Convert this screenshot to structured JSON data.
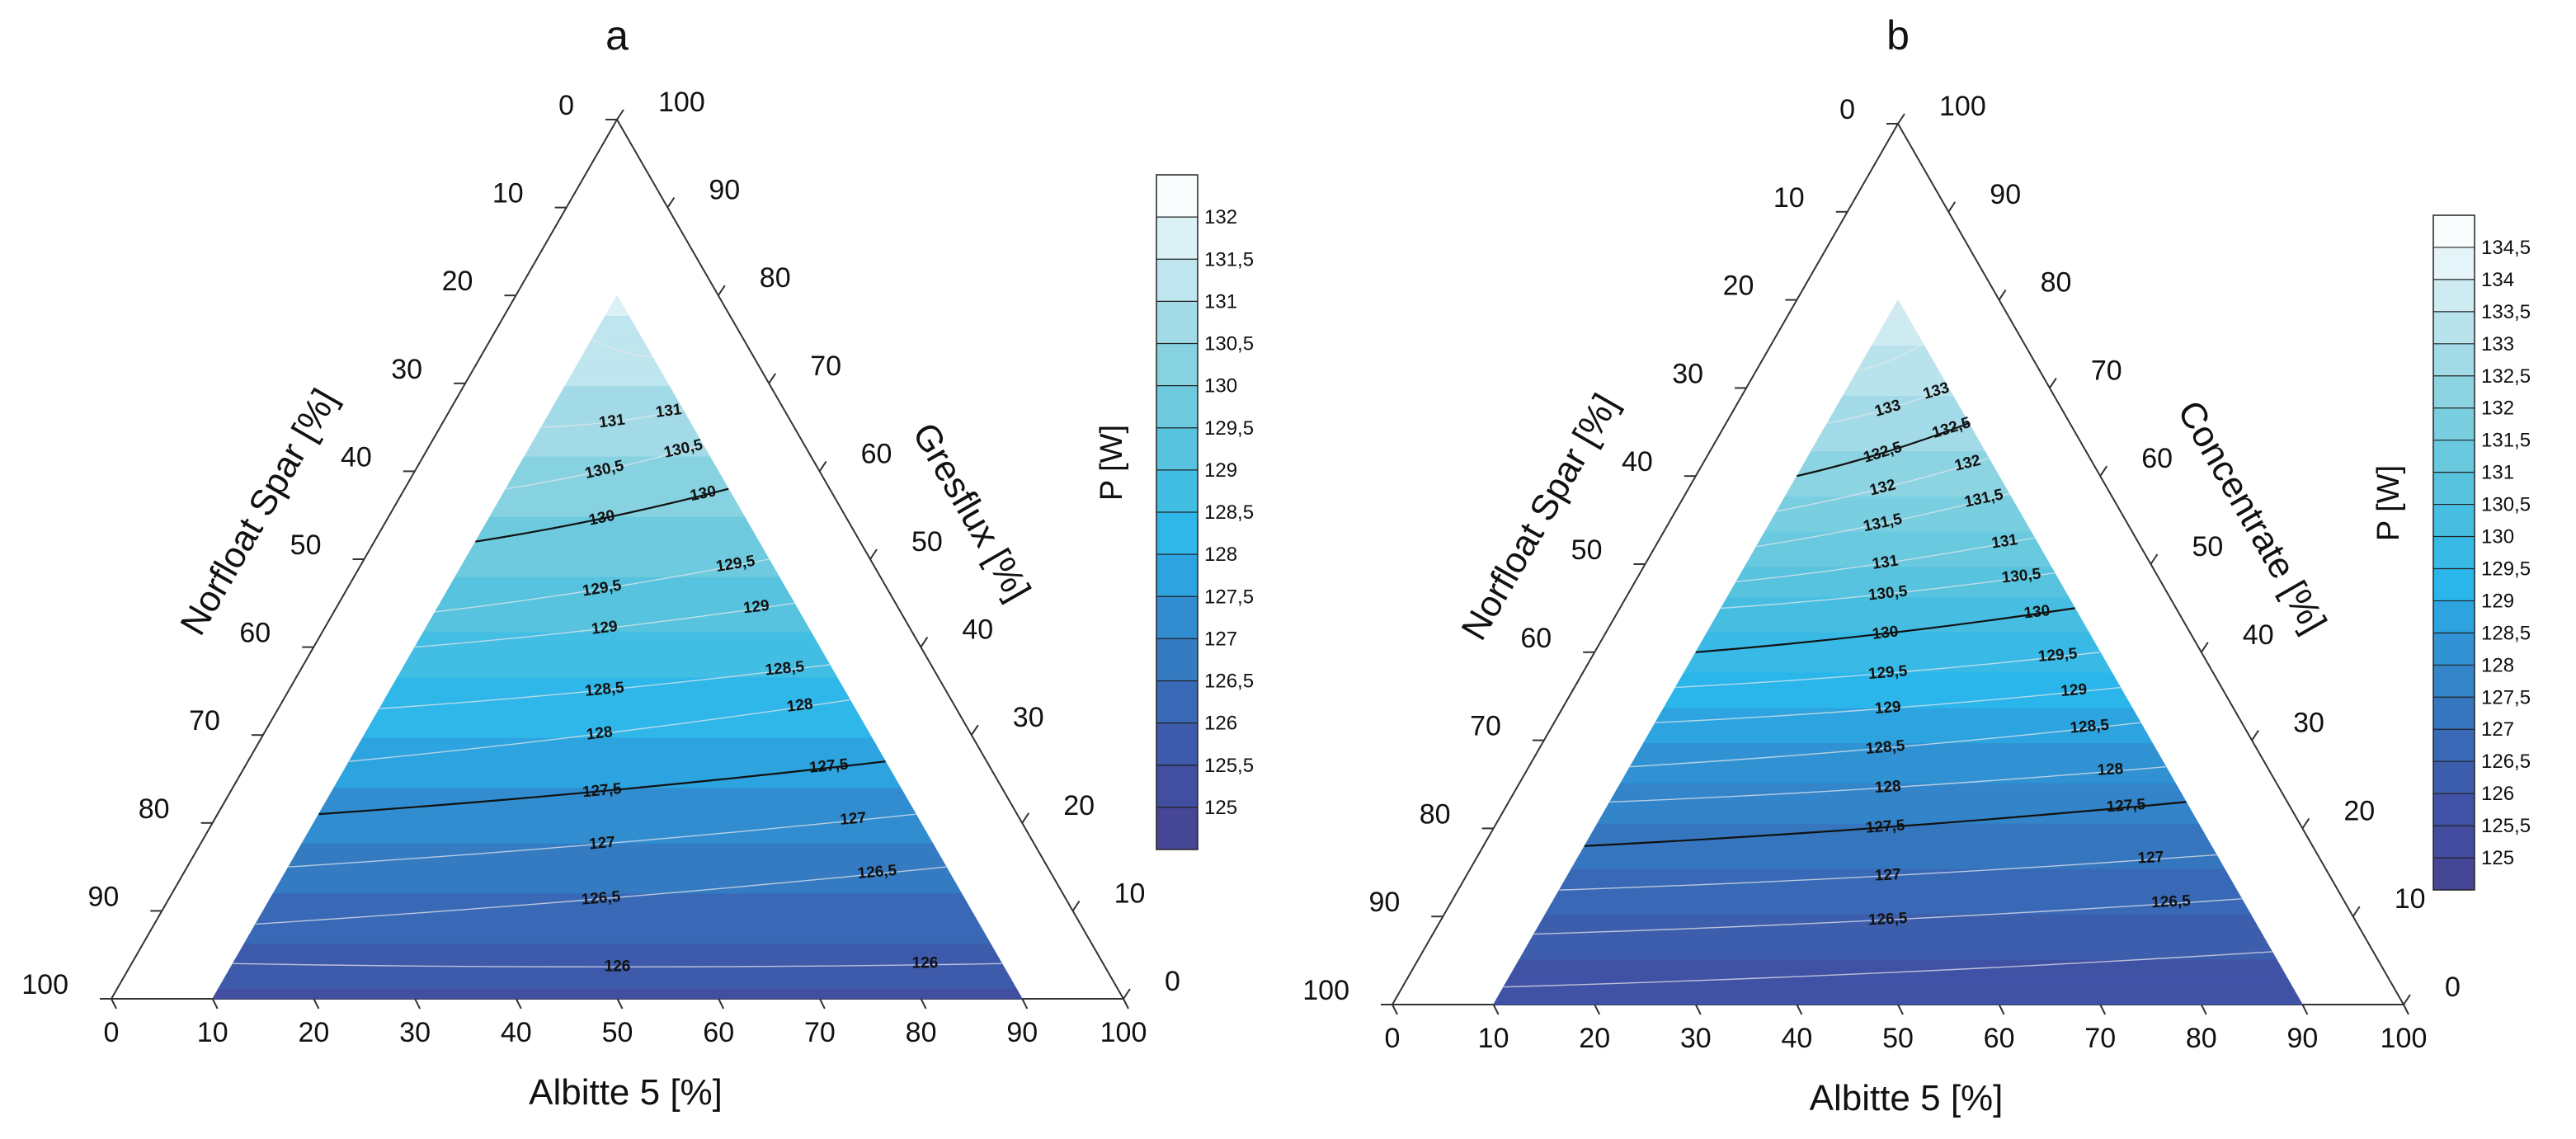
{
  "chart_data": [
    {
      "type": "ternary-contour",
      "title": "a",
      "bottom_axis": {
        "label": "Albitte 5   [%]",
        "ticks": [
          "0",
          "10",
          "20",
          "30",
          "40",
          "50",
          "60",
          "70",
          "80",
          "90",
          "100"
        ]
      },
      "left_axis": {
        "label": "Norfloat Spar   [%]",
        "ticks": [
          "0",
          "10",
          "20",
          "30",
          "40",
          "50",
          "60",
          "70",
          "80",
          "90",
          "100"
        ]
      },
      "right_axis": {
        "label": "Gresflux   [%]",
        "ticks": [
          "100",
          "90",
          "80",
          "70",
          "60",
          "50",
          "40",
          "30",
          "20",
          "10",
          "0"
        ]
      },
      "colorbar": {
        "title": "P  [W]",
        "levels": [
          "125",
          "125,5",
          "126",
          "126,5",
          "127",
          "127,5",
          "128",
          "128,5",
          "129",
          "129,5",
          "130",
          "130,5",
          "131",
          "131,5",
          "132"
        ],
        "range": [
          125,
          132.5
        ]
      },
      "region": {
        "top_c_max": 80,
        "bottom_c_min": 0,
        "min_a": 10,
        "min_b": 10
      },
      "contours": [
        {
          "value": 126,
          "label": "126",
          "a_left": 0.1,
          "a_right": 0.71,
          "c_mid": 0.04,
          "c_right": 0.04
        },
        {
          "value": 126.5,
          "label": "126,5",
          "a_left": 0.1,
          "a_right": 0.69,
          "c_mid": 0.085,
          "c_right": 0.15
        },
        {
          "value": 127,
          "label": "127",
          "a_left": 0.17,
          "a_right": 0.71,
          "c_mid": 0.15,
          "c_right": 0.21
        },
        {
          "value": 127.5,
          "label": "127,5",
          "a_left": 0.13,
          "a_right": 0.55,
          "c_mid": 0.21,
          "c_right": 0.27
        },
        {
          "value": 128,
          "label": "128",
          "a_left": 0.2,
          "a_right": 0.5,
          "c_mid": 0.27,
          "c_right": 0.34
        },
        {
          "value": 128.5,
          "label": "128,5",
          "a_left": 0.24,
          "a_right": 0.43,
          "c_mid": 0.33,
          "c_right": 0.38
        },
        {
          "value": 129,
          "label": "129",
          "a_left": 0.28,
          "a_right": 0.37,
          "c_mid": 0.4,
          "c_right": 0.45
        },
        {
          "value": 129.5,
          "label": "129,5",
          "a_left": 0.32,
          "a_right": 0.32,
          "c_mid": 0.44,
          "c_right": 0.5
        },
        {
          "value": 130,
          "label": "130",
          "a_left": 0.37,
          "a_right": 0.26,
          "c_mid": 0.52,
          "c_right": 0.58
        },
        {
          "value": 130.5,
          "label": "130,5",
          "a_left": 0.42,
          "a_right": 0.22,
          "c_mid": 0.58,
          "c_right": 0.63
        },
        {
          "value": 131,
          "label": "131",
          "a_left": 0.49,
          "a_right": 0.19,
          "c_mid": 0.65,
          "c_right": 0.67
        },
        {
          "value": 131.5,
          "label": "",
          "a_left": 0.55,
          "a_right": 0.18,
          "c_mid": 0.75,
          "c_right": 0.73
        }
      ],
      "emphasized": [
        127.5,
        130
      ]
    },
    {
      "type": "ternary-contour",
      "title": "b",
      "bottom_axis": {
        "label": "Albitte 5   [%]",
        "ticks": [
          "0",
          "10",
          "20",
          "30",
          "40",
          "50",
          "60",
          "70",
          "80",
          "90",
          "100"
        ]
      },
      "left_axis": {
        "label": "Norfloat Spar   [%]",
        "ticks": [
          "0",
          "10",
          "20",
          "30",
          "40",
          "50",
          "60",
          "70",
          "80",
          "90",
          "100"
        ]
      },
      "right_axis": {
        "label": "Concentrate   [%]",
        "ticks": [
          "100",
          "90",
          "80",
          "70",
          "60",
          "50",
          "40",
          "30",
          "20",
          "10",
          "0"
        ]
      },
      "colorbar": {
        "title": "P  [W]",
        "levels": [
          "125",
          "125,5",
          "126",
          "126,5",
          "127",
          "127,5",
          "128",
          "128,5",
          "129",
          "129,5",
          "130",
          "130,5",
          "131",
          "131,5",
          "132",
          "132,5",
          "133",
          "133,5",
          "134",
          "134,5"
        ],
        "range": [
          125,
          135
        ]
      },
      "region": {
        "top_c_max": 80,
        "bottom_c_min": 0,
        "min_a": 10,
        "min_b": 10
      },
      "contours": [
        {
          "value": 126,
          "label": "",
          "a_left": 0.1,
          "a_right": 0.71,
          "c_mid": 0.02,
          "c_right": 0.06
        },
        {
          "value": 126.5,
          "label": "126,5",
          "a_left": 0.1,
          "a_right": 0.71,
          "c_mid": 0.08,
          "c_right": 0.12
        },
        {
          "value": 127,
          "label": "127",
          "a_left": 0.14,
          "a_right": 0.71,
          "c_mid": 0.13,
          "c_right": 0.17
        },
        {
          "value": 127.5,
          "label": "127,5",
          "a_left": 0.15,
          "a_right": 0.65,
          "c_mid": 0.18,
          "c_right": 0.23
        },
        {
          "value": 128,
          "label": "128",
          "a_left": 0.13,
          "a_right": 0.56,
          "c_mid": 0.23,
          "c_right": 0.27
        },
        {
          "value": 128.5,
          "label": "128,5",
          "a_left": 0.2,
          "a_right": 0.5,
          "c_mid": 0.27,
          "c_right": 0.32
        },
        {
          "value": 129,
          "label": "129",
          "a_left": 0.24,
          "a_right": 0.45,
          "c_mid": 0.32,
          "c_right": 0.36
        },
        {
          "value": 129.5,
          "label": "129,5",
          "a_left": 0.27,
          "a_right": 0.4,
          "c_mid": 0.36,
          "c_right": 0.4
        },
        {
          "value": 130,
          "label": "130",
          "a_left": 0.32,
          "a_right": 0.34,
          "c_mid": 0.4,
          "c_right": 0.45
        },
        {
          "value": 130.5,
          "label": "130,5",
          "a_left": 0.36,
          "a_right": 0.3,
          "c_mid": 0.45,
          "c_right": 0.49
        },
        {
          "value": 131,
          "label": "131",
          "a_left": 0.41,
          "a_right": 0.26,
          "c_mid": 0.48,
          "c_right": 0.53
        },
        {
          "value": 131.5,
          "label": "131,5",
          "a_left": 0.46,
          "a_right": 0.24,
          "c_mid": 0.52,
          "c_right": 0.58
        },
        {
          "value": 132,
          "label": "132",
          "a_left": 0.5,
          "a_right": 0.22,
          "c_mid": 0.56,
          "c_right": 0.62
        },
        {
          "value": 132.5,
          "label": "132,5",
          "a_left": 0.55,
          "a_right": 0.2,
          "c_mid": 0.6,
          "c_right": 0.66
        },
        {
          "value": 133,
          "label": "133",
          "a_left": 0.6,
          "a_right": 0.18,
          "c_mid": 0.66,
          "c_right": 0.7
        },
        {
          "value": 133.5,
          "label": "",
          "a_left": 0.65,
          "a_right": 0.17,
          "c_mid": 0.72,
          "c_right": 0.75
        },
        {
          "value": 134,
          "label": "",
          "a_left": 0.7,
          "a_right": 0.17,
          "c_mid": 0.78,
          "c_right": 0.79
        }
      ],
      "emphasized": [
        127.5,
        130,
        132.5
      ]
    }
  ]
}
